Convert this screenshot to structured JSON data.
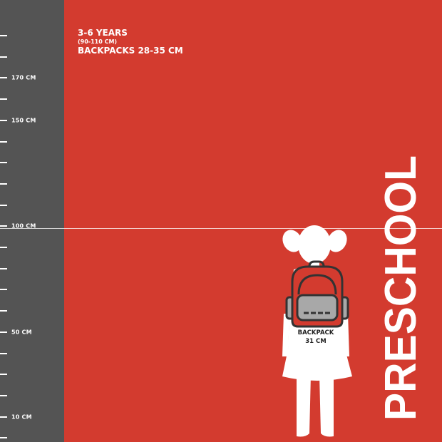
{
  "ruler": {
    "ticks": [
      {
        "label": ""
      },
      {
        "label": ""
      },
      {
        "label": "170 CM"
      },
      {
        "label": ""
      },
      {
        "label": "150 CM"
      },
      {
        "label": ""
      },
      {
        "label": ""
      },
      {
        "label": ""
      },
      {
        "label": ""
      },
      {
        "label": "100 CM"
      },
      {
        "label": ""
      },
      {
        "label": ""
      },
      {
        "label": ""
      },
      {
        "label": ""
      },
      {
        "label": "50 CM"
      },
      {
        "label": ""
      },
      {
        "label": ""
      },
      {
        "label": ""
      },
      {
        "label": "10 CM"
      },
      {
        "label": ""
      }
    ]
  },
  "info": {
    "age": "3-6 YEARS",
    "height_range": "(90-110 CM)",
    "backpack_range": "BACKPACKS 28-35 CM"
  },
  "figure": {
    "backpack_label": "BACKPACK",
    "backpack_size": "31 CM"
  },
  "category": "PRESCHOOL",
  "colors": {
    "background": "#d33b2f",
    "ruler": "#545454",
    "backpack_gray": "#a8a8a8"
  }
}
